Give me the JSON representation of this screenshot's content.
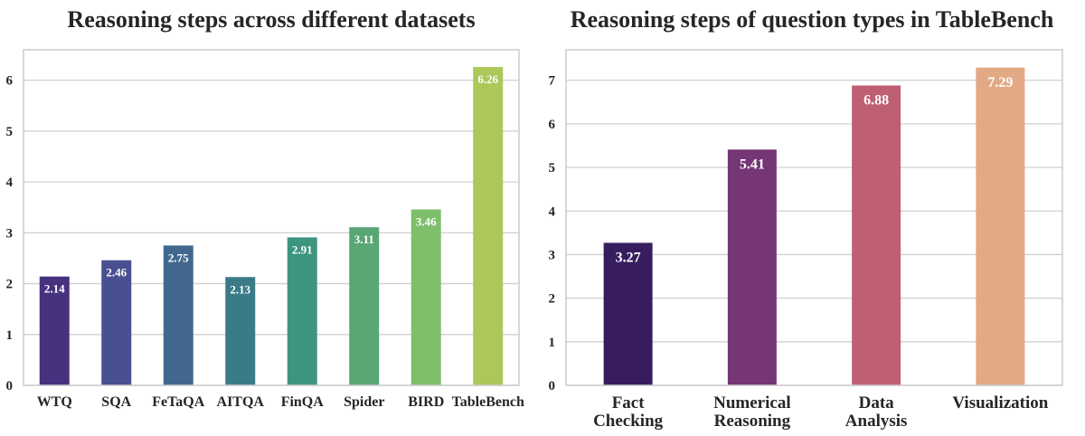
{
  "chart_data": [
    {
      "type": "bar",
      "title": "Reasoning steps across different datasets",
      "xlabel": "",
      "ylabel": "",
      "ylim": [
        0,
        6.6
      ],
      "yticks": [
        0,
        1,
        2,
        3,
        4,
        5,
        6
      ],
      "grid": true,
      "categories": [
        "WTQ",
        "SQA",
        "FeTaQA",
        "AITQA",
        "FinQA",
        "Spider",
        "BIRD",
        "TableBench"
      ],
      "values": [
        2.14,
        2.46,
        2.75,
        2.13,
        2.91,
        3.11,
        3.46,
        6.26
      ],
      "value_labels": [
        "2.14",
        "2.46",
        "2.75",
        "2.13",
        "2.91",
        "3.11",
        "3.46",
        "6.26"
      ],
      "colors": [
        "#46327e",
        "#485090",
        "#42688f",
        "#3a7b87",
        "#3e957f",
        "#5aa675",
        "#7fbf6b",
        "#acc75a"
      ]
    },
    {
      "type": "bar",
      "title": "Reasoning steps of question types in TableBench",
      "xlabel": "",
      "ylabel": "",
      "ylim": [
        0,
        7.7
      ],
      "yticks": [
        0,
        1,
        2,
        3,
        4,
        5,
        6,
        7
      ],
      "grid": true,
      "categories": [
        [
          "Fact",
          "Checking"
        ],
        [
          "Numerical",
          "Reasoning"
        ],
        [
          "Data",
          "Analysis"
        ],
        [
          "Visualization"
        ]
      ],
      "values": [
        3.27,
        5.41,
        6.88,
        7.29
      ],
      "value_labels": [
        "3.27",
        "5.41",
        "6.88",
        "7.29"
      ],
      "colors": [
        "#371c5e",
        "#763574",
        "#bf5f73",
        "#e2a984"
      ]
    }
  ]
}
